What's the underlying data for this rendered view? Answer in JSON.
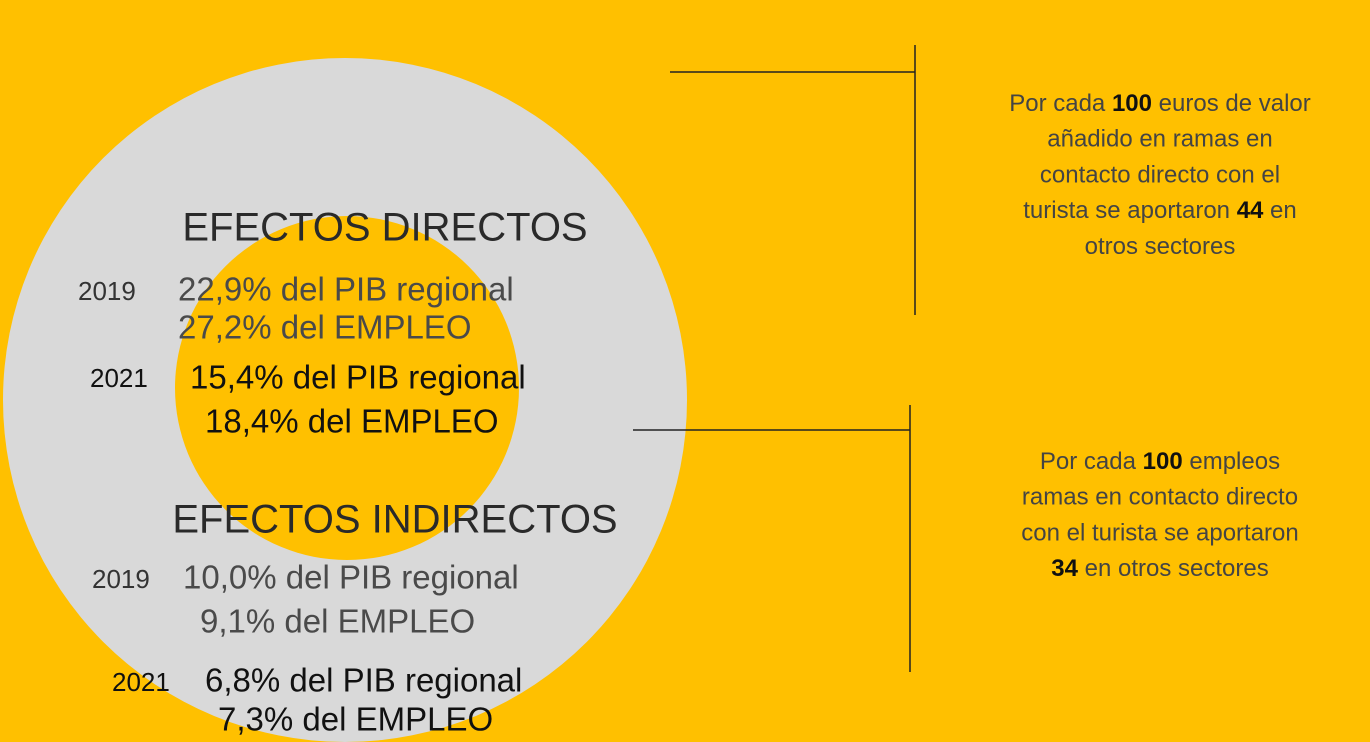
{
  "direct": {
    "title": "EFECTOS DIRECTOS",
    "years": [
      {
        "year": "2019",
        "pib": "22,9% del PIB regional",
        "empleo": "27,2% del EMPLEO"
      },
      {
        "year": "2021",
        "pib": "15,4% del PIB regional",
        "empleo": "18,4% del EMPLEO"
      }
    ]
  },
  "indirect": {
    "title": "EFECTOS INDIRECTOS",
    "years": [
      {
        "year": "2019",
        "pib": "10,0% del PIB regional",
        "empleo": "9,1% del EMPLEO"
      },
      {
        "year": "2021",
        "pib": "6,8% del PIB regional",
        "empleo": "7,3% del EMPLEO"
      }
    ]
  },
  "notes": [
    {
      "lines": [
        [
          {
            "text": "Por cada "
          },
          {
            "text": "100",
            "bold": true
          },
          {
            "text": " euros de valor"
          }
        ],
        [
          {
            "text": "añadido en ramas en"
          }
        ],
        [
          {
            "text": "contacto directo con el"
          }
        ],
        [
          {
            "text": "turista se aportaron "
          },
          {
            "text": "44",
            "bold": true
          },
          {
            "text": " en"
          }
        ],
        [
          {
            "text": "otros sectores"
          }
        ]
      ]
    },
    {
      "lines": [
        [
          {
            "text": "Por cada "
          },
          {
            "text": "100",
            "bold": true
          },
          {
            "text": " empleos"
          }
        ],
        [
          {
            "text": "ramas en contacto directo"
          }
        ],
        [
          {
            "text": "con el turista se aportaron"
          }
        ],
        [
          {
            "text": "34",
            "bold": true
          },
          {
            "text": " en otros sectores"
          }
        ]
      ]
    }
  ]
}
